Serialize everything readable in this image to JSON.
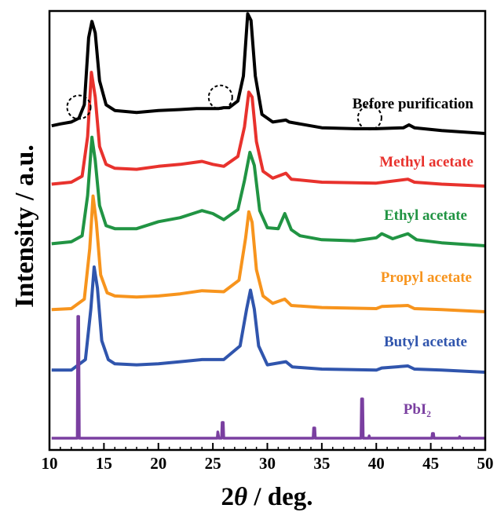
{
  "chart_data": {
    "type": "line",
    "xlabel_prefix": "2",
    "xlabel_symbol": "θ",
    "xlabel_suffix": " / deg.",
    "ylabel": "Intensity / a.u.",
    "xlim": [
      10,
      50
    ],
    "xticks": [
      10,
      15,
      20,
      25,
      30,
      35,
      40,
      45,
      50
    ],
    "y_ticks_shown": false,
    "grid": false,
    "series": [
      {
        "name": "Before purification",
        "color": "#000000",
        "offset": 5,
        "points": [
          [
            10.2,
            0.08
          ],
          [
            11,
            0.1
          ],
          [
            12,
            0.12
          ],
          [
            12.7,
            0.16
          ],
          [
            13.2,
            0.3
          ],
          [
            13.6,
            1.0
          ],
          [
            13.9,
            1.17
          ],
          [
            14.2,
            1.05
          ],
          [
            14.6,
            0.55
          ],
          [
            15.2,
            0.3
          ],
          [
            16,
            0.24
          ],
          [
            18,
            0.22
          ],
          [
            20,
            0.24
          ],
          [
            22,
            0.25
          ],
          [
            23.5,
            0.26
          ],
          [
            24.5,
            0.26
          ],
          [
            25.5,
            0.26
          ],
          [
            26,
            0.27
          ],
          [
            26.5,
            0.27
          ],
          [
            27.3,
            0.34
          ],
          [
            27.8,
            0.6
          ],
          [
            28.2,
            1.25
          ],
          [
            28.5,
            1.18
          ],
          [
            28.9,
            0.6
          ],
          [
            29.5,
            0.2
          ],
          [
            30.5,
            0.12
          ],
          [
            31.7,
            0.14
          ],
          [
            32,
            0.12
          ],
          [
            35,
            0.06
          ],
          [
            38,
            0.05
          ],
          [
            40,
            0.05
          ],
          [
            42.5,
            0.06
          ],
          [
            43,
            0.09
          ],
          [
            43.5,
            0.06
          ],
          [
            46,
            0.03
          ],
          [
            50,
            0.0
          ]
        ]
      },
      {
        "name": "Methyl acetate",
        "color": "#e8322d",
        "offset": 4,
        "points": [
          [
            10.2,
            0.02
          ],
          [
            12,
            0.04
          ],
          [
            13.0,
            0.1
          ],
          [
            13.5,
            0.5
          ],
          [
            13.85,
            1.15
          ],
          [
            14.2,
            0.9
          ],
          [
            14.6,
            0.4
          ],
          [
            15.2,
            0.22
          ],
          [
            16,
            0.18
          ],
          [
            18,
            0.17
          ],
          [
            20,
            0.2
          ],
          [
            22,
            0.22
          ],
          [
            24,
            0.25
          ],
          [
            25,
            0.22
          ],
          [
            26,
            0.2
          ],
          [
            27.3,
            0.3
          ],
          [
            27.9,
            0.6
          ],
          [
            28.3,
            0.95
          ],
          [
            28.6,
            0.9
          ],
          [
            29,
            0.45
          ],
          [
            29.6,
            0.15
          ],
          [
            30.5,
            0.08
          ],
          [
            31.7,
            0.13
          ],
          [
            32.2,
            0.07
          ],
          [
            35,
            0.04
          ],
          [
            40,
            0.03
          ],
          [
            42.9,
            0.07
          ],
          [
            43.5,
            0.04
          ],
          [
            46,
            0.02
          ],
          [
            50,
            0.0
          ]
        ]
      },
      {
        "name": "Ethyl acetate",
        "color": "#219443",
        "offset": 3,
        "points": [
          [
            10.2,
            0.02
          ],
          [
            12,
            0.04
          ],
          [
            13.0,
            0.1
          ],
          [
            13.5,
            0.5
          ],
          [
            13.9,
            1.08
          ],
          [
            14.2,
            0.85
          ],
          [
            14.6,
            0.4
          ],
          [
            15.2,
            0.2
          ],
          [
            16,
            0.17
          ],
          [
            18,
            0.17
          ],
          [
            20,
            0.24
          ],
          [
            22,
            0.28
          ],
          [
            24,
            0.35
          ],
          [
            25,
            0.32
          ],
          [
            26,
            0.26
          ],
          [
            27.3,
            0.36
          ],
          [
            27.9,
            0.65
          ],
          [
            28.4,
            0.93
          ],
          [
            28.8,
            0.8
          ],
          [
            29.3,
            0.35
          ],
          [
            30,
            0.18
          ],
          [
            31,
            0.17
          ],
          [
            31.6,
            0.32
          ],
          [
            32.2,
            0.16
          ],
          [
            33,
            0.1
          ],
          [
            35,
            0.06
          ],
          [
            38,
            0.05
          ],
          [
            40,
            0.08
          ],
          [
            40.5,
            0.12
          ],
          [
            41.5,
            0.07
          ],
          [
            42.9,
            0.12
          ],
          [
            43.7,
            0.06
          ],
          [
            46,
            0.03
          ],
          [
            50,
            0.0
          ]
        ]
      },
      {
        "name": "Propyl acetate",
        "color": "#f7941d",
        "offset": 2,
        "points": [
          [
            10.2,
            0.02
          ],
          [
            12,
            0.03
          ],
          [
            13.2,
            0.12
          ],
          [
            13.7,
            0.6
          ],
          [
            14.0,
            1.1
          ],
          [
            14.3,
            0.85
          ],
          [
            14.7,
            0.35
          ],
          [
            15.3,
            0.18
          ],
          [
            16,
            0.15
          ],
          [
            18,
            0.14
          ],
          [
            20,
            0.15
          ],
          [
            22,
            0.17
          ],
          [
            24,
            0.2
          ],
          [
            26,
            0.19
          ],
          [
            27.4,
            0.3
          ],
          [
            28.0,
            0.7
          ],
          [
            28.3,
            0.95
          ],
          [
            28.6,
            0.85
          ],
          [
            29,
            0.4
          ],
          [
            29.6,
            0.15
          ],
          [
            30.5,
            0.08
          ],
          [
            31.6,
            0.12
          ],
          [
            32.2,
            0.06
          ],
          [
            35,
            0.04
          ],
          [
            40,
            0.03
          ],
          [
            40.5,
            0.05
          ],
          [
            42.9,
            0.06
          ],
          [
            43.5,
            0.03
          ],
          [
            46,
            0.02
          ],
          [
            50,
            0.0
          ]
        ]
      },
      {
        "name": "Butyl acetate",
        "color": "#3055ad",
        "offset": 1,
        "points": [
          [
            10.2,
            0.02
          ],
          [
            12,
            0.02
          ],
          [
            13.3,
            0.12
          ],
          [
            13.8,
            0.6
          ],
          [
            14.1,
            1.0
          ],
          [
            14.4,
            0.8
          ],
          [
            14.8,
            0.3
          ],
          [
            15.4,
            0.12
          ],
          [
            16,
            0.08
          ],
          [
            18,
            0.07
          ],
          [
            20,
            0.08
          ],
          [
            22,
            0.1
          ],
          [
            24,
            0.12
          ],
          [
            26,
            0.12
          ],
          [
            27.5,
            0.25
          ],
          [
            28.1,
            0.6
          ],
          [
            28.45,
            0.78
          ],
          [
            28.8,
            0.6
          ],
          [
            29.2,
            0.25
          ],
          [
            30,
            0.07
          ],
          [
            31.7,
            0.1
          ],
          [
            32.3,
            0.05
          ],
          [
            35,
            0.03
          ],
          [
            40,
            0.02
          ],
          [
            40.5,
            0.04
          ],
          [
            42.9,
            0.06
          ],
          [
            43.5,
            0.03
          ],
          [
            46,
            0.02
          ],
          [
            50,
            0.0
          ]
        ]
      },
      {
        "name": "PbI₂",
        "color": "#7a3fa0",
        "offset": 0,
        "points": [
          [
            10.2,
            0
          ],
          [
            12.55,
            0
          ],
          [
            12.6,
            1.55
          ],
          [
            12.68,
            1.55
          ],
          [
            12.74,
            0
          ],
          [
            25.4,
            0
          ],
          [
            25.45,
            0.08
          ],
          [
            25.55,
            0
          ],
          [
            25.8,
            0
          ],
          [
            25.85,
            0.2
          ],
          [
            25.95,
            0.2
          ],
          [
            26.0,
            0
          ],
          [
            34.2,
            0
          ],
          [
            34.25,
            0.13
          ],
          [
            34.35,
            0.13
          ],
          [
            34.4,
            0
          ],
          [
            38.6,
            0
          ],
          [
            38.65,
            0.5
          ],
          [
            38.75,
            0.5
          ],
          [
            38.8,
            0
          ],
          [
            39.3,
            0
          ],
          [
            39.35,
            0.03
          ],
          [
            39.4,
            0
          ],
          [
            45.1,
            0
          ],
          [
            45.15,
            0.06
          ],
          [
            45.25,
            0.06
          ],
          [
            45.3,
            0
          ],
          [
            47.6,
            0
          ],
          [
            47.65,
            0.02
          ],
          [
            47.7,
            0
          ],
          [
            50,
            0
          ]
        ]
      }
    ],
    "annotations": [
      {
        "type": "dashed-circle",
        "series": "Before purification",
        "x": 12.7
      },
      {
        "type": "dashed-circle",
        "series": "Before purification",
        "x": 25.7
      },
      {
        "type": "dashed-circle",
        "series": "Before purification",
        "x": 39.4
      }
    ],
    "series_labels": [
      "Before purification",
      "Methyl acetate",
      "Ethyl acetate",
      "Propyl acetate",
      "Butyl acetate",
      "PbI₂"
    ]
  }
}
